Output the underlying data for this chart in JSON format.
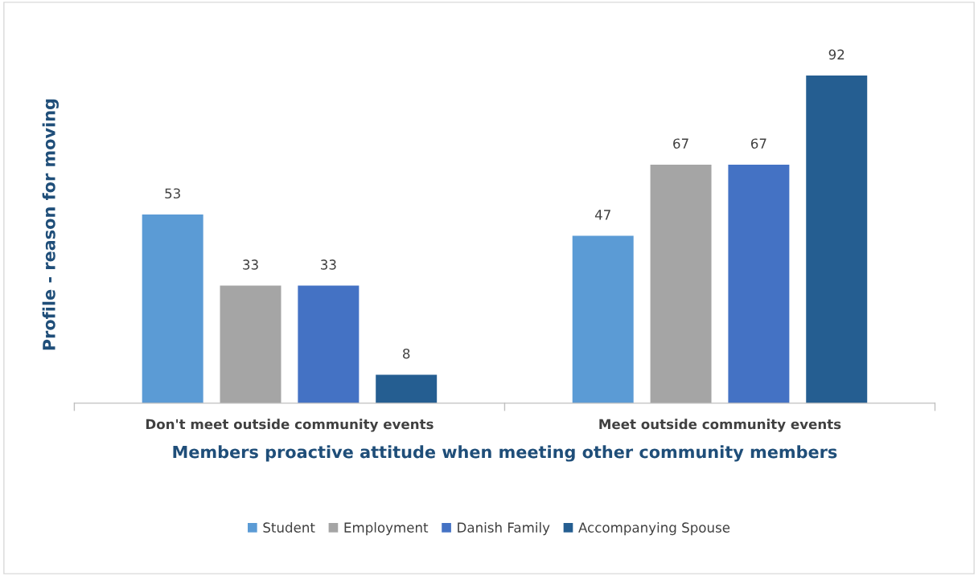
{
  "chart_data": {
    "type": "bar",
    "xlabel": "Members proactive attitude when meeting other community members",
    "ylabel": "Profile - reason for moving",
    "categories": [
      "Don't meet outside community events",
      "Meet outside community events"
    ],
    "series": [
      {
        "name": "Student",
        "color": "#5b9bd5",
        "values": [
          53,
          47
        ]
      },
      {
        "name": "Employment",
        "color": "#a5a5a5",
        "values": [
          33,
          67
        ]
      },
      {
        "name": "Danish Family",
        "color": "#4472c4",
        "values": [
          33,
          67
        ]
      },
      {
        "name": "Accompanying Spouse",
        "color": "#255e91",
        "values": [
          8,
          92
        ]
      }
    ],
    "tick_labels": "x",
    "data_labels": true,
    "grid": false,
    "legend": "bottom"
  }
}
